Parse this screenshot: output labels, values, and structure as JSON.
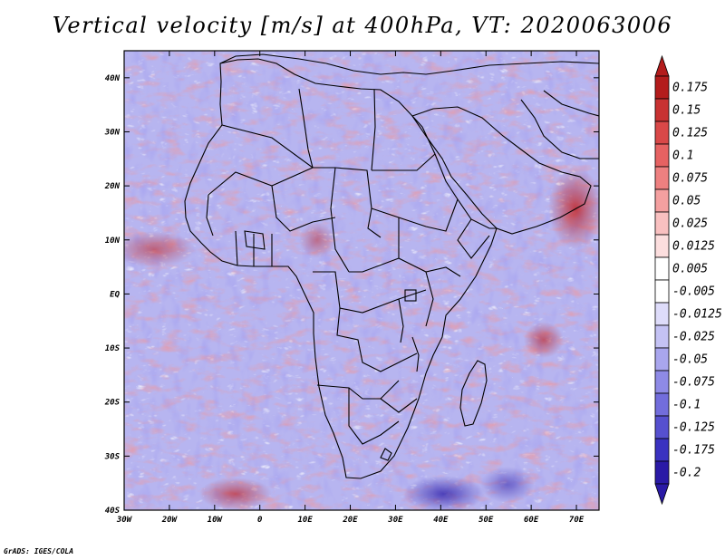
{
  "title": "Vertical velocity [m/s] at 400hPa, VT: 2020063006",
  "credit": "GrADS: IGES/COLA",
  "map": {
    "lon_range": [
      -30,
      75
    ],
    "lat_range": [
      -40,
      45
    ],
    "lon_ticks": [
      {
        "value": -30,
        "label": "30W"
      },
      {
        "value": -20,
        "label": "20W"
      },
      {
        "value": -10,
        "label": "10W"
      },
      {
        "value": 0,
        "label": "0"
      },
      {
        "value": 10,
        "label": "10E"
      },
      {
        "value": 20,
        "label": "20E"
      },
      {
        "value": 30,
        "label": "30E"
      },
      {
        "value": 40,
        "label": "40E"
      },
      {
        "value": 50,
        "label": "50E"
      },
      {
        "value": 60,
        "label": "60E"
      },
      {
        "value": 70,
        "label": "70E"
      }
    ],
    "lat_ticks": [
      {
        "value": 40,
        "label": "40N"
      },
      {
        "value": 30,
        "label": "30N"
      },
      {
        "value": 20,
        "label": "20N"
      },
      {
        "value": 10,
        "label": "10N"
      },
      {
        "value": 0,
        "label": "EQ"
      },
      {
        "value": -10,
        "label": "10S"
      },
      {
        "value": -20,
        "label": "20S"
      },
      {
        "value": -30,
        "label": "30S"
      },
      {
        "value": -40,
        "label": "40S"
      }
    ]
  },
  "colorbar": {
    "bins": [
      {
        "label": "0.175",
        "color": "#b31c1c"
      },
      {
        "label": "0.15",
        "color": "#c83232"
      },
      {
        "label": "0.125",
        "color": "#d94848"
      },
      {
        "label": "0.1",
        "color": "#e66262"
      },
      {
        "label": "0.075",
        "color": "#ee8080"
      },
      {
        "label": "0.05",
        "color": "#f4a0a0"
      },
      {
        "label": "0.025",
        "color": "#f9c0c0"
      },
      {
        "label": "0.0125",
        "color": "#fcdede"
      },
      {
        "label": "0.005",
        "color": "#ffffff"
      },
      {
        "label": "-0.005",
        "color": "#ffffff"
      },
      {
        "label": "-0.0125",
        "color": "#dedcfa"
      },
      {
        "label": "-0.025",
        "color": "#c4c2f4"
      },
      {
        "label": "-0.05",
        "color": "#a9a6ee"
      },
      {
        "label": "-0.075",
        "color": "#8e8ae6"
      },
      {
        "label": "-0.1",
        "color": "#726ddc"
      },
      {
        "label": "-0.125",
        "color": "#5650cf"
      },
      {
        "label": "-0.175",
        "color": "#3a32c0"
      },
      {
        "label": "-0.2",
        "color": "#2a1aa6"
      }
    ],
    "top_arrow_color": "#b31c1c",
    "bottom_arrow_color": "#2a1aa6"
  }
}
